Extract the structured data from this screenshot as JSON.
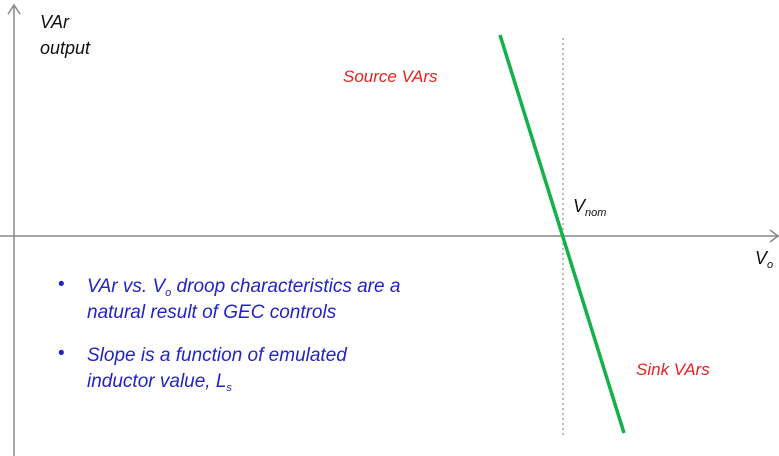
{
  "axes": {
    "y_label": [
      "VAr",
      "output"
    ],
    "x_label": {
      "main": "V",
      "sub": "o"
    }
  },
  "regions": {
    "source": "Source VArs",
    "sink": "Sink VArs"
  },
  "nominal": {
    "main": "V",
    "sub": "nom"
  },
  "bullets": [
    {
      "lines": [
        {
          "text": "VAr vs. V",
          "sub": "o",
          "after": " droop characteristics are a"
        },
        {
          "text": "natural result of GEC controls"
        }
      ]
    },
    {
      "lines": [
        {
          "text": "Slope is a function of emulated"
        },
        {
          "text": "inductor value, L",
          "sub": "s"
        }
      ]
    }
  ]
}
